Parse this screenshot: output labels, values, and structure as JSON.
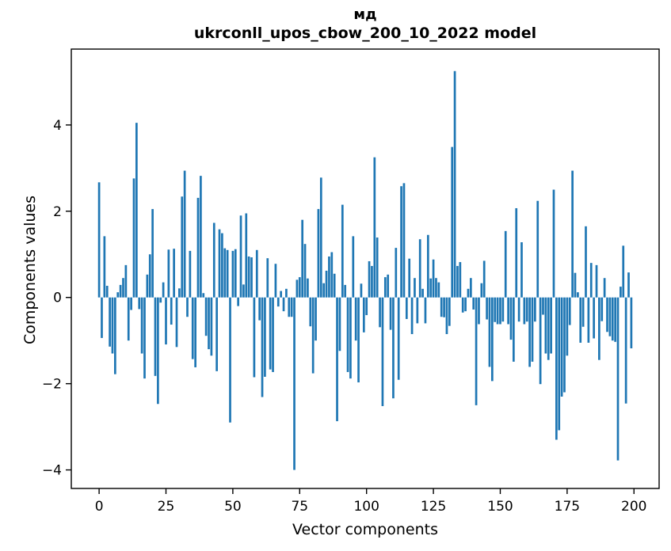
{
  "chart_data": {
    "type": "bar",
    "title": "мд",
    "subtitle": "ukrconll_upos_cbow_200_10_2022 model",
    "xlabel": "Vector components",
    "ylabel": "Components values",
    "xticks": [
      0,
      25,
      50,
      75,
      100,
      125,
      150,
      175,
      200
    ],
    "yticks": [
      -4,
      -2,
      0,
      2,
      4
    ],
    "xlim": [
      -10.4,
      209.4
    ],
    "ylim": [
      -4.43,
      5.76
    ],
    "grid": false,
    "legend": null,
    "bar_color": "#1f77b4",
    "axis_color": "#000000",
    "values": [
      2.67,
      -0.94,
      1.42,
      0.27,
      -1.14,
      -1.3,
      -1.78,
      0.12,
      0.29,
      0.45,
      0.75,
      -1.0,
      -0.29,
      2.76,
      4.05,
      -0.27,
      -1.3,
      -1.88,
      0.53,
      1.0,
      2.05,
      -1.82,
      -2.47,
      -0.12,
      0.35,
      -1.09,
      1.11,
      -0.63,
      1.13,
      -1.15,
      0.21,
      2.34,
      2.94,
      -0.45,
      1.08,
      -1.43,
      -1.62,
      2.31,
      2.82,
      0.1,
      -0.89,
      -1.2,
      -1.35,
      1.73,
      -1.71,
      1.58,
      1.49,
      1.14,
      1.1,
      -2.9,
      1.08,
      1.12,
      -0.2,
      1.9,
      0.3,
      1.95,
      0.95,
      0.93,
      -1.85,
      1.1,
      -0.53,
      -2.31,
      -1.84,
      0.91,
      -1.67,
      -1.73,
      0.78,
      -0.21,
      0.15,
      -0.32,
      0.2,
      -0.45,
      -0.45,
      -4.0,
      0.41,
      0.47,
      1.8,
      1.24,
      0.44,
      -0.67,
      -1.76,
      -1.0,
      2.05,
      2.78,
      0.33,
      0.62,
      0.95,
      1.05,
      0.55,
      -2.87,
      -1.24,
      2.15,
      0.29,
      -1.73,
      -1.88,
      1.42,
      -1.0,
      -1.97,
      0.32,
      -0.81,
      -0.41,
      0.84,
      0.73,
      3.25,
      1.39,
      -0.69,
      -2.52,
      0.47,
      0.53,
      -0.75,
      -2.34,
      1.15,
      -1.91,
      2.58,
      2.65,
      -0.5,
      0.9,
      -0.85,
      0.45,
      -0.6,
      1.35,
      0.2,
      -0.6,
      1.45,
      0.44,
      0.88,
      0.45,
      0.35,
      -0.45,
      -0.46,
      -0.85,
      -0.66,
      3.49,
      5.25,
      0.73,
      0.82,
      -0.35,
      -0.32,
      0.2,
      0.45,
      -0.28,
      -2.5,
      -0.62,
      0.33,
      0.85,
      -0.51,
      -1.61,
      -1.94,
      -0.57,
      -0.62,
      -0.62,
      -0.56,
      1.54,
      -0.62,
      -0.98,
      -1.49,
      2.07,
      -0.56,
      1.28,
      -0.62,
      -0.56,
      -1.61,
      -1.49,
      -0.56,
      2.24,
      -2.01,
      -0.4,
      -1.3,
      -1.45,
      -1.3,
      2.5,
      -3.3,
      -3.08,
      -2.3,
      -2.2,
      -1.35,
      -0.64,
      2.94,
      0.57,
      0.12,
      -1.05,
      -0.68,
      1.65,
      -1.05,
      0.8,
      -0.95,
      0.75,
      -1.45,
      -0.55,
      0.45,
      -0.8,
      -0.9,
      -1.0,
      -1.03,
      -3.78,
      0.25,
      1.2,
      -2.46,
      0.58,
      -1.18
    ]
  }
}
